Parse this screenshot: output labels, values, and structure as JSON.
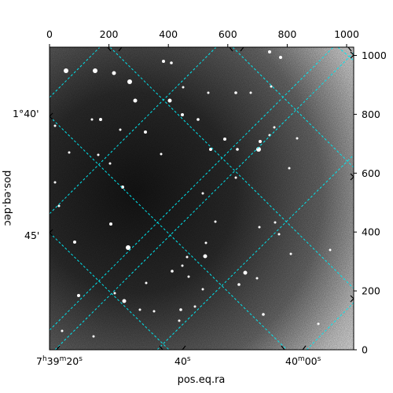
{
  "figure": {
    "kind": "astronomical-image",
    "colormap": "grayscale",
    "grid_color": "#00e5ee",
    "x_axis_label": "pos.eq.ra",
    "y_axis_label": "pos.eq.dec",
    "pixel_ticks_top": [
      "0",
      "200",
      "400",
      "600",
      "800",
      "1000"
    ],
    "pixel_ticks_right": [
      "0",
      "200",
      "400",
      "600",
      "800",
      "1000"
    ],
    "ra_ticks": [
      {
        "h": "7",
        "m": "39",
        "s": "20",
        "text_left": "7",
        "sup_h": "h",
        "text_mid": "39",
        "sup_m": "m",
        "text_right": "20",
        "sup_s": "s"
      },
      {
        "text": "40",
        "sup": "s"
      },
      {
        "text_left": "40",
        "sup_m": "m",
        "text_right": "00",
        "sup_s": "s"
      }
    ],
    "dec_ticks": [
      "1°40'",
      "45'"
    ]
  }
}
